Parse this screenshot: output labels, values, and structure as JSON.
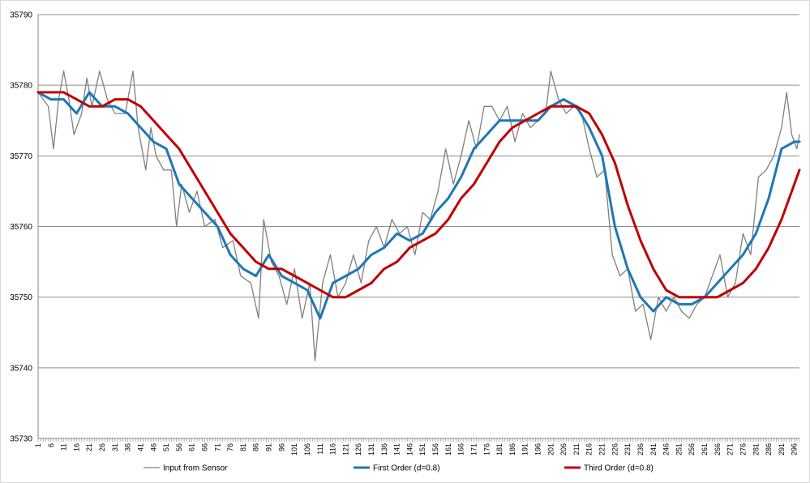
{
  "chart_data": {
    "type": "line",
    "title": "",
    "xlabel": "",
    "ylabel": "",
    "ylim": [
      35730,
      35790
    ],
    "xlim": [
      1,
      298
    ],
    "yticks": [
      35730,
      35740,
      35750,
      35760,
      35770,
      35780,
      35790
    ],
    "xticks": [
      1,
      6,
      11,
      16,
      21,
      26,
      31,
      36,
      41,
      46,
      51,
      56,
      61,
      66,
      71,
      76,
      81,
      86,
      91,
      96,
      101,
      106,
      111,
      116,
      121,
      126,
      131,
      136,
      141,
      146,
      151,
      156,
      161,
      166,
      171,
      176,
      181,
      186,
      191,
      196,
      201,
      206,
      211,
      216,
      221,
      226,
      231,
      236,
      241,
      246,
      251,
      256,
      261,
      266,
      271,
      276,
      281,
      286,
      291,
      296
    ],
    "grid": "horizontal",
    "legend_position": "bottom",
    "series": [
      {
        "name": "Input from Sensor",
        "color": "#7f7f7f",
        "points": [
          [
            1,
            35779
          ],
          [
            5,
            35777
          ],
          [
            7,
            35771
          ],
          [
            9,
            35778
          ],
          [
            11,
            35782
          ],
          [
            13,
            35778
          ],
          [
            15,
            35773
          ],
          [
            18,
            35776
          ],
          [
            20,
            35781
          ],
          [
            22,
            35777
          ],
          [
            25,
            35782
          ],
          [
            28,
            35778
          ],
          [
            31,
            35776
          ],
          [
            35,
            35776
          ],
          [
            38,
            35782
          ],
          [
            40,
            35774
          ],
          [
            43,
            35768
          ],
          [
            45,
            35774
          ],
          [
            47,
            35770
          ],
          [
            50,
            35768
          ],
          [
            53,
            35768
          ],
          [
            55,
            35760
          ],
          [
            57,
            35766
          ],
          [
            60,
            35762
          ],
          [
            63,
            35765
          ],
          [
            66,
            35760
          ],
          [
            70,
            35761
          ],
          [
            73,
            35757
          ],
          [
            77,
            35758
          ],
          [
            80,
            35753
          ],
          [
            84,
            35752
          ],
          [
            87,
            35747
          ],
          [
            89,
            35761
          ],
          [
            92,
            35755
          ],
          [
            95,
            35753
          ],
          [
            98,
            35749
          ],
          [
            101,
            35754
          ],
          [
            104,
            35747
          ],
          [
            107,
            35752
          ],
          [
            109,
            35741
          ],
          [
            112,
            35752
          ],
          [
            115,
            35756
          ],
          [
            118,
            35750
          ],
          [
            121,
            35752
          ],
          [
            124,
            35756
          ],
          [
            127,
            35752
          ],
          [
            130,
            35758
          ],
          [
            133,
            35760
          ],
          [
            136,
            35757
          ],
          [
            139,
            35761
          ],
          [
            142,
            35759
          ],
          [
            145,
            35760
          ],
          [
            148,
            35756
          ],
          [
            151,
            35762
          ],
          [
            154,
            35761
          ],
          [
            157,
            35765
          ],
          [
            160,
            35771
          ],
          [
            163,
            35766
          ],
          [
            166,
            35770
          ],
          [
            169,
            35775
          ],
          [
            172,
            35771
          ],
          [
            175,
            35777
          ],
          [
            178,
            35777
          ],
          [
            181,
            35775
          ],
          [
            184,
            35777
          ],
          [
            187,
            35772
          ],
          [
            190,
            35776
          ],
          [
            193,
            35774
          ],
          [
            196,
            35775
          ],
          [
            199,
            35776
          ],
          [
            201,
            35782
          ],
          [
            204,
            35778
          ],
          [
            207,
            35776
          ],
          [
            210,
            35777
          ],
          [
            213,
            35776
          ],
          [
            216,
            35771
          ],
          [
            219,
            35767
          ],
          [
            222,
            35768
          ],
          [
            225,
            35756
          ],
          [
            228,
            35753
          ],
          [
            231,
            35754
          ],
          [
            234,
            35748
          ],
          [
            237,
            35749
          ],
          [
            240,
            35744
          ],
          [
            243,
            35750
          ],
          [
            246,
            35748
          ],
          [
            249,
            35750
          ],
          [
            252,
            35748
          ],
          [
            255,
            35747
          ],
          [
            258,
            35749
          ],
          [
            261,
            35750
          ],
          [
            264,
            35753
          ],
          [
            267,
            35756
          ],
          [
            270,
            35750
          ],
          [
            273,
            35752
          ],
          [
            276,
            35759
          ],
          [
            279,
            35756
          ],
          [
            282,
            35767
          ],
          [
            285,
            35768
          ],
          [
            288,
            35770
          ],
          [
            291,
            35774
          ],
          [
            293,
            35779
          ],
          [
            295,
            35773
          ],
          [
            297,
            35771
          ],
          [
            298,
            35773
          ]
        ]
      },
      {
        "name": "First Order (d=0.8)",
        "color": "#1f77b4",
        "points": [
          [
            1,
            35779
          ],
          [
            6,
            35778
          ],
          [
            11,
            35778
          ],
          [
            16,
            35776
          ],
          [
            21,
            35779
          ],
          [
            26,
            35777
          ],
          [
            31,
            35777
          ],
          [
            36,
            35776
          ],
          [
            41,
            35774
          ],
          [
            46,
            35772
          ],
          [
            51,
            35771
          ],
          [
            56,
            35766
          ],
          [
            61,
            35764
          ],
          [
            66,
            35762
          ],
          [
            71,
            35760
          ],
          [
            76,
            35756
          ],
          [
            81,
            35754
          ],
          [
            86,
            35753
          ],
          [
            91,
            35756
          ],
          [
            96,
            35753
          ],
          [
            101,
            35752
          ],
          [
            106,
            35751
          ],
          [
            111,
            35747
          ],
          [
            116,
            35752
          ],
          [
            121,
            35753
          ],
          [
            126,
            35754
          ],
          [
            131,
            35756
          ],
          [
            136,
            35757
          ],
          [
            141,
            35759
          ],
          [
            146,
            35758
          ],
          [
            151,
            35759
          ],
          [
            156,
            35762
          ],
          [
            161,
            35764
          ],
          [
            166,
            35767
          ],
          [
            171,
            35771
          ],
          [
            176,
            35773
          ],
          [
            181,
            35775
          ],
          [
            186,
            35775
          ],
          [
            191,
            35775
          ],
          [
            196,
            35775
          ],
          [
            201,
            35777
          ],
          [
            206,
            35778
          ],
          [
            211,
            35777
          ],
          [
            216,
            35774
          ],
          [
            221,
            35770
          ],
          [
            226,
            35760
          ],
          [
            231,
            35754
          ],
          [
            236,
            35750
          ],
          [
            241,
            35748
          ],
          [
            246,
            35750
          ],
          [
            251,
            35749
          ],
          [
            256,
            35749
          ],
          [
            261,
            35750
          ],
          [
            266,
            35752
          ],
          [
            271,
            35754
          ],
          [
            276,
            35756
          ],
          [
            281,
            35759
          ],
          [
            286,
            35764
          ],
          [
            291,
            35771
          ],
          [
            296,
            35772
          ],
          [
            298,
            35772
          ]
        ]
      },
      {
        "name": "Third Order (d=0.8)",
        "color": "#c00000",
        "points": [
          [
            1,
            35779
          ],
          [
            6,
            35779
          ],
          [
            11,
            35779
          ],
          [
            16,
            35778
          ],
          [
            21,
            35777
          ],
          [
            26,
            35777
          ],
          [
            31,
            35778
          ],
          [
            36,
            35778
          ],
          [
            41,
            35777
          ],
          [
            46,
            35775
          ],
          [
            51,
            35773
          ],
          [
            56,
            35771
          ],
          [
            61,
            35768
          ],
          [
            66,
            35765
          ],
          [
            71,
            35762
          ],
          [
            76,
            35759
          ],
          [
            81,
            35757
          ],
          [
            86,
            35755
          ],
          [
            91,
            35754
          ],
          [
            96,
            35754
          ],
          [
            101,
            35753
          ],
          [
            106,
            35752
          ],
          [
            111,
            35751
          ],
          [
            116,
            35750
          ],
          [
            121,
            35750
          ],
          [
            126,
            35751
          ],
          [
            131,
            35752
          ],
          [
            136,
            35754
          ],
          [
            141,
            35755
          ],
          [
            146,
            35757
          ],
          [
            151,
            35758
          ],
          [
            156,
            35759
          ],
          [
            161,
            35761
          ],
          [
            166,
            35764
          ],
          [
            171,
            35766
          ],
          [
            176,
            35769
          ],
          [
            181,
            35772
          ],
          [
            186,
            35774
          ],
          [
            191,
            35775
          ],
          [
            196,
            35776
          ],
          [
            201,
            35777
          ],
          [
            206,
            35777
          ],
          [
            211,
            35777
          ],
          [
            216,
            35776
          ],
          [
            221,
            35773
          ],
          [
            226,
            35769
          ],
          [
            231,
            35763
          ],
          [
            236,
            35758
          ],
          [
            241,
            35754
          ],
          [
            246,
            35751
          ],
          [
            251,
            35750
          ],
          [
            256,
            35750
          ],
          [
            261,
            35750
          ],
          [
            266,
            35750
          ],
          [
            271,
            35751
          ],
          [
            276,
            35752
          ],
          [
            281,
            35754
          ],
          [
            286,
            35757
          ],
          [
            291,
            35761
          ],
          [
            296,
            35766
          ],
          [
            298,
            35768
          ]
        ]
      }
    ]
  }
}
